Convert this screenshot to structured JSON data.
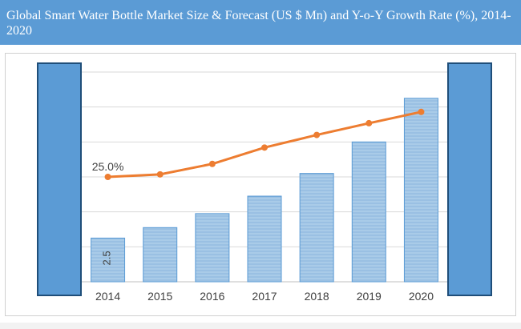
{
  "chart_data": {
    "type": "bar",
    "title": "Global Smart Water Bottle Market Size & Forecast (US $ Mn) and Y-o-Y Growth Rate (%), 2014-2020",
    "categories": [
      "2014",
      "2015",
      "2016",
      "2017",
      "2018",
      "2019",
      "2020"
    ],
    "series": [
      {
        "type": "bar",
        "values": [
          2.5,
          3.1,
          3.9,
          4.9,
          6.2,
          8.0,
          10.5
        ]
      },
      {
        "type": "line",
        "values": [
          25.0,
          25.6,
          28.1,
          32.0,
          35.0,
          37.8,
          40.5
        ]
      }
    ],
    "data_labels": {
      "first_bar": "2.5",
      "first_line": "25.0%"
    },
    "ylim": [
      0,
      12
    ],
    "line_ylim": [
      0,
      50
    ],
    "grid": true,
    "colors": {
      "bar": "#9dc3e6",
      "line": "#ed7d31",
      "title_bg": "#5b9bd5",
      "side_block": "#5b9bd5"
    }
  }
}
